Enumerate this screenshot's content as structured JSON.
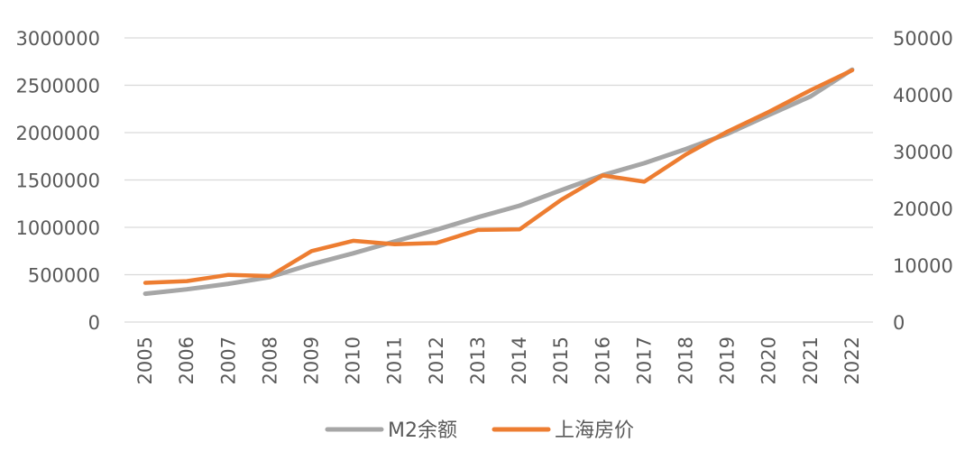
{
  "chart_data": {
    "type": "line",
    "x": [
      "2005",
      "2006",
      "2007",
      "2008",
      "2009",
      "2010",
      "2011",
      "2012",
      "2013",
      "2014",
      "2015",
      "2016",
      "2017",
      "2018",
      "2019",
      "2020",
      "2021",
      "2022"
    ],
    "y_left_ticks": [
      "0",
      "500000",
      "1000000",
      "1500000",
      "2000000",
      "2500000",
      "3000000"
    ],
    "y_right_ticks": [
      "0",
      "10000",
      "20000",
      "30000",
      "40000",
      "50000"
    ],
    "ylim_left": [
      0,
      3000000
    ],
    "ylim_right": [
      0,
      50000
    ],
    "grid": "horizontal",
    "legend_position": "bottom",
    "series": [
      {
        "name": "M2余额",
        "axis": "left",
        "color": "#a6a6a6",
        "values": [
          298755,
          345578,
          403442,
          475167,
          610225,
          725852,
          851591,
          974149,
          1106525,
          1228375,
          1392278,
          1550066,
          1676769,
          1826744,
          1986489,
          2186796,
          2382900,
          2664321
        ]
      },
      {
        "name": "上海房价",
        "axis": "right",
        "color": "#ed7d31",
        "values": [
          6900,
          7200,
          8300,
          8100,
          12500,
          14300,
          13700,
          13900,
          16200,
          16300,
          21500,
          25800,
          24700,
          29500,
          33500,
          37000,
          40800,
          44300
        ]
      }
    ]
  }
}
